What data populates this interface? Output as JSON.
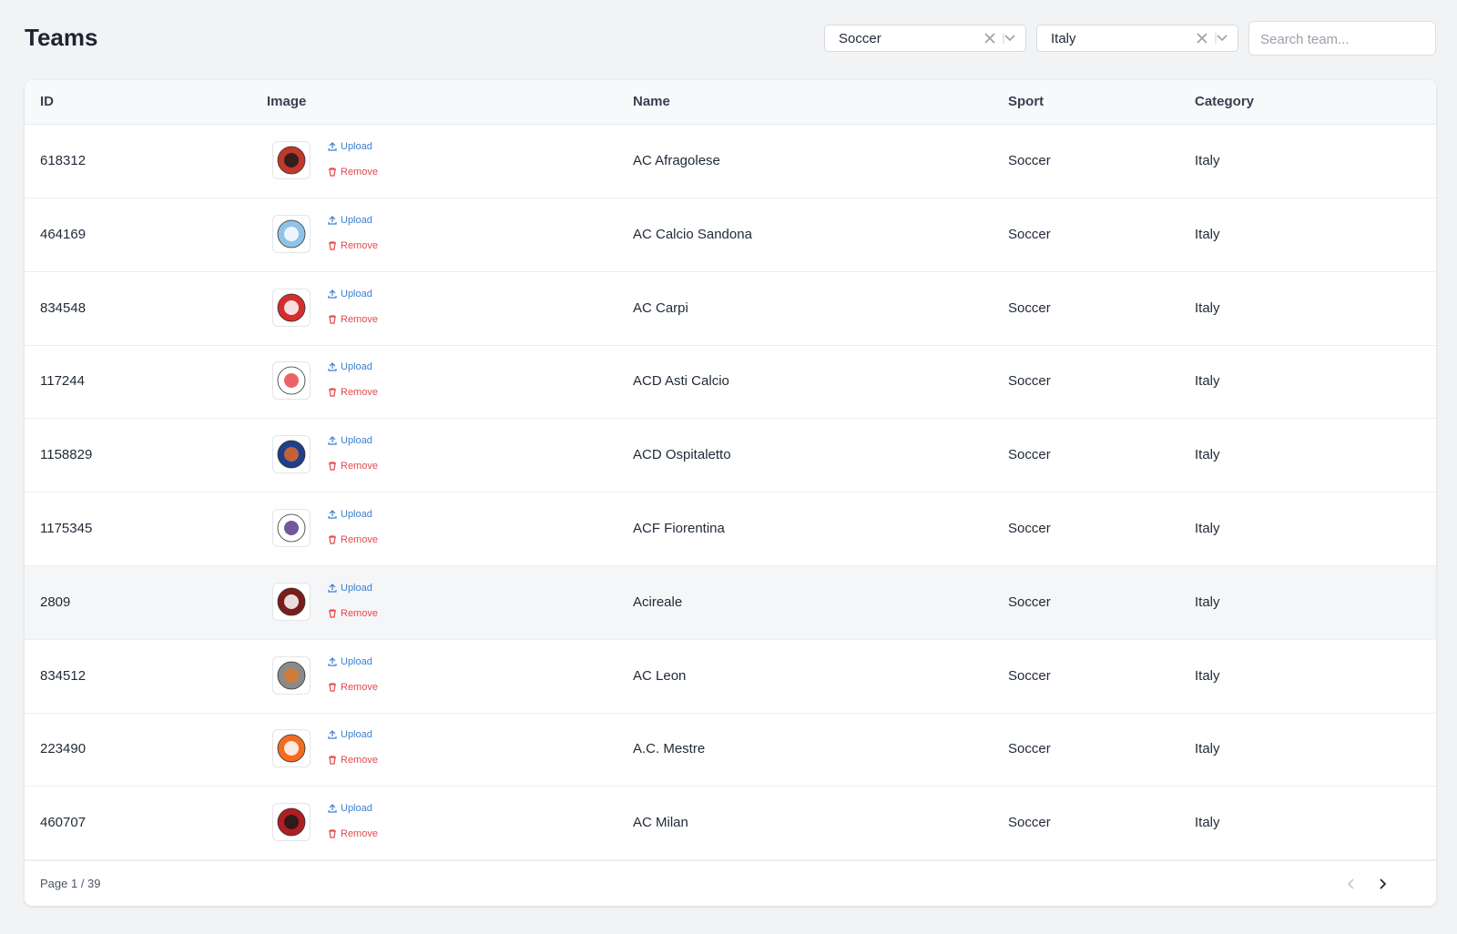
{
  "header": {
    "title": "Teams"
  },
  "filters": {
    "sport": "Soccer",
    "category": "Italy",
    "search_placeholder": "Search team..."
  },
  "table": {
    "columns": [
      "ID",
      "Image",
      "Name",
      "Sport",
      "Category"
    ],
    "rows": [
      {
        "id": "618312",
        "name": "AC Afragolese",
        "sport": "Soccer",
        "category": "Italy"
      },
      {
        "id": "464169",
        "name": "AC Calcio Sandona",
        "sport": "Soccer",
        "category": "Italy"
      },
      {
        "id": "834548",
        "name": "AC Carpi",
        "sport": "Soccer",
        "category": "Italy"
      },
      {
        "id": "117244",
        "name": "ACD Asti Calcio",
        "sport": "Soccer",
        "category": "Italy"
      },
      {
        "id": "1158829",
        "name": "ACD Ospitaletto",
        "sport": "Soccer",
        "category": "Italy"
      },
      {
        "id": "1175345",
        "name": "ACF Fiorentina",
        "sport": "Soccer",
        "category": "Italy"
      },
      {
        "id": "2809",
        "name": "Acireale",
        "sport": "Soccer",
        "category": "Italy"
      },
      {
        "id": "834512",
        "name": "AC Leon",
        "sport": "Soccer",
        "category": "Italy"
      },
      {
        "id": "223490",
        "name": "A.C. Mestre",
        "sport": "Soccer",
        "category": "Italy"
      },
      {
        "id": "460707",
        "name": "AC Milan",
        "sport": "Soccer",
        "category": "Italy"
      }
    ]
  },
  "image_actions": {
    "upload": "Upload",
    "remove": "Remove"
  },
  "pagination": {
    "label": "Page 1 / 39"
  }
}
